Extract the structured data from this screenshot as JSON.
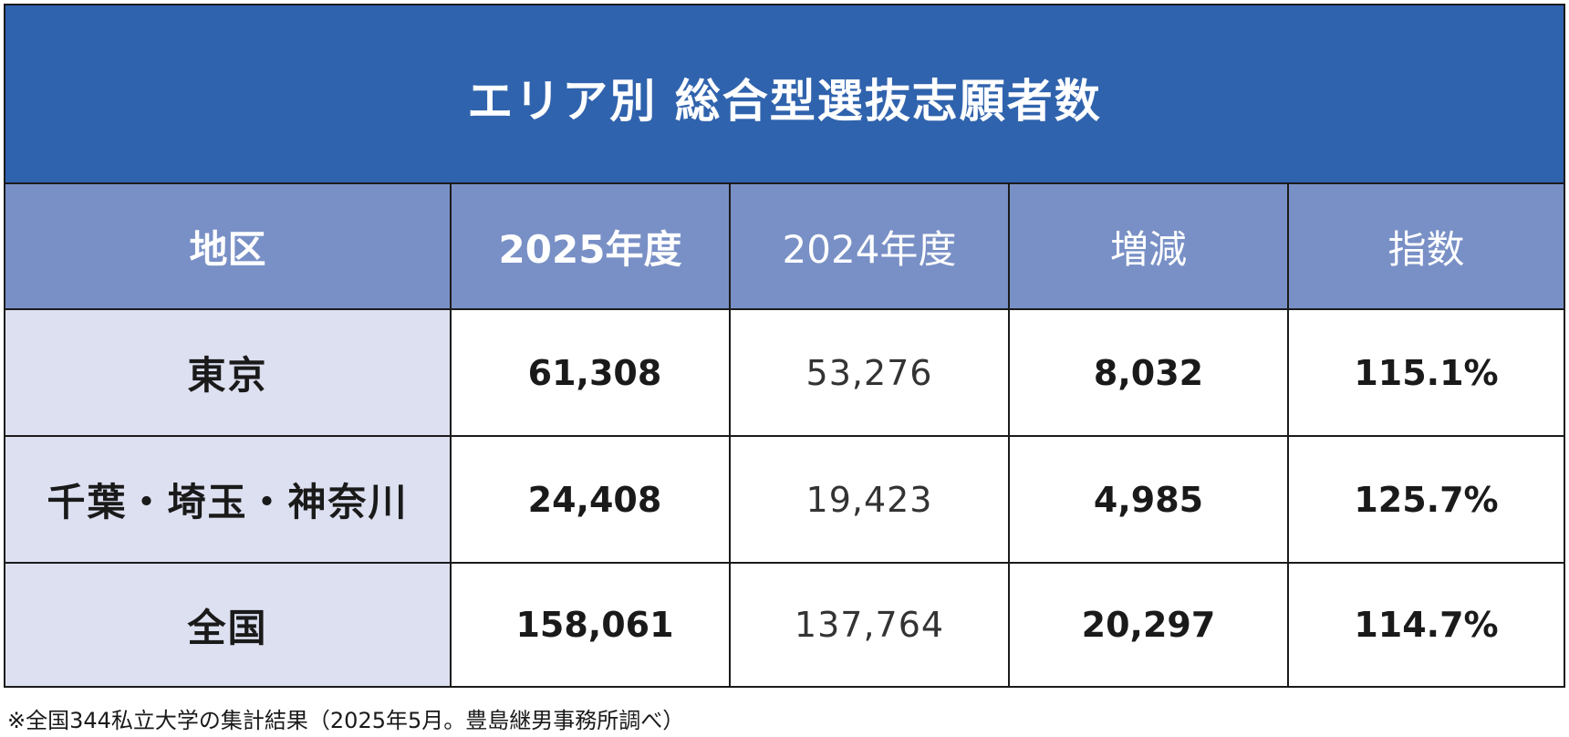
{
  "title": "エリア別 総合型選抜志願者数",
  "headers": {
    "region": "地区",
    "y2025": "2025年度",
    "y2024": "2024年度",
    "change": "増減",
    "index": "指数"
  },
  "rows": [
    {
      "region": "東京",
      "y2025": "61,308",
      "y2024": "53,276",
      "change": "8,032",
      "index": "115.1%"
    },
    {
      "region": "千葉・埼玉・神奈川",
      "y2025": "24,408",
      "y2024": "19,423",
      "change": "4,985",
      "index": "125.7%"
    },
    {
      "region": "全国",
      "y2025": "158,061",
      "y2024": "137,764",
      "change": "20,297",
      "index": "114.7%"
    }
  ],
  "footnote": "※全国344私立大学の集計結果（2025年5月。豊島継男事務所調べ）",
  "colors": {
    "title_bg": "#3063ad",
    "header_bg": "#7990c6",
    "region_bg": "#dde0f0"
  }
}
